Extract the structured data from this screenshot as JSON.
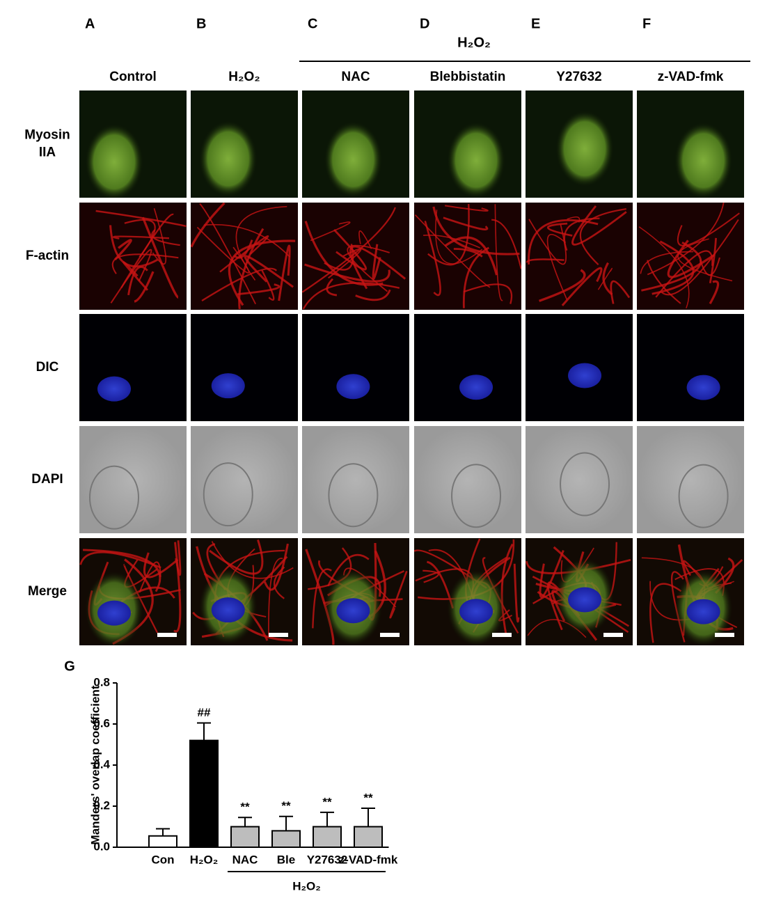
{
  "figure": {
    "panel_letters": [
      "A",
      "B",
      "C",
      "D",
      "E",
      "F"
    ],
    "treatment_header": "H₂O₂",
    "columns": [
      "Control",
      "H₂O₂",
      "NAC",
      "Blebbistatin",
      "Y27632",
      "z-VAD-fmk"
    ],
    "rows": [
      [
        "Myosin",
        "IIA"
      ],
      [
        "F-actin"
      ],
      [
        "DIC"
      ],
      [
        "DAPI"
      ],
      [
        "Merge"
      ]
    ]
  },
  "chart_data": {
    "type": "bar",
    "panel_letter": "G",
    "y_label": "Manders' overlap coefficient",
    "categories": [
      "Con",
      "H₂O₂",
      "NAC",
      "Ble",
      "Y27632",
      "z-VAD-fmk"
    ],
    "values": [
      0.055,
      0.52,
      0.1,
      0.08,
      0.1,
      0.1
    ],
    "errors": [
      0.035,
      0.085,
      0.045,
      0.07,
      0.07,
      0.09
    ],
    "colors": [
      "#ffffff",
      "#000000",
      "#bdbdbd",
      "#bdbdbd",
      "#bdbdbd",
      "#bdbdbd"
    ],
    "annotations": [
      null,
      "##",
      "**",
      "**",
      "**",
      "**"
    ],
    "group_label": "H₂O₂",
    "ylim": [
      0,
      0.8
    ],
    "yticks": [
      {
        "value": 0,
        "label": "0.0"
      },
      {
        "value": 0.2,
        "label": "0.2"
      },
      {
        "value": 0.4,
        "label": "0.4"
      },
      {
        "value": 0.6,
        "label": "0.6"
      },
      {
        "value": 0.8,
        "label": "0.8"
      }
    ]
  }
}
